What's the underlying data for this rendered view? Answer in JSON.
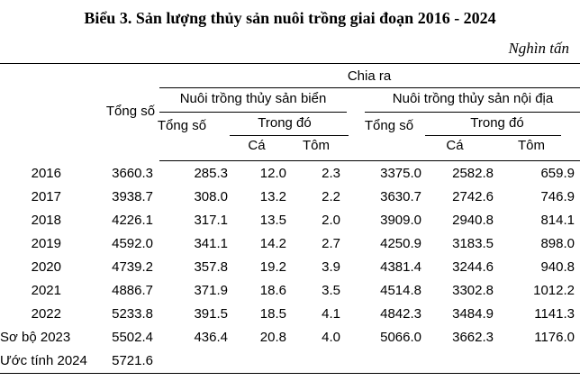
{
  "title": "Biểu 3. Sản lượng thủy sản nuôi trồng giai đoạn 2016 - 2024",
  "unit": "Nghìn tấn",
  "header": {
    "chia_ra": "Chia ra",
    "total": "Tổng số",
    "marine_group": "Nuôi trồng thủy sản biển",
    "inland_group": "Nuôi trồng thủy sản nội địa",
    "marine": {
      "total": "Tổng số",
      "trong_do": "Trong đó",
      "ca": "Cá",
      "tom": "Tôm"
    },
    "inland": {
      "total": "Tổng số",
      "trong_do": "Trong đó",
      "ca": "Cá",
      "tom": "Tôm"
    }
  },
  "table": {
    "rows": [
      {
        "label": "2016",
        "values": [
          "3660.3",
          "285.3",
          "12.0",
          "2.3",
          "3375.0",
          "2582.8",
          "659.9"
        ]
      },
      {
        "label": "2017",
        "values": [
          "3938.7",
          "308.0",
          "13.2",
          "2.2",
          "3630.7",
          "2742.6",
          "746.9"
        ]
      },
      {
        "label": "2018",
        "values": [
          "4226.1",
          "317.1",
          "13.5",
          "2.0",
          "3909.0",
          "2940.8",
          "814.1"
        ]
      },
      {
        "label": "2019",
        "values": [
          "4592.0",
          "341.1",
          "14.2",
          "2.7",
          "4250.9",
          "3183.5",
          "898.0"
        ]
      },
      {
        "label": "2020",
        "values": [
          "4739.2",
          "357.8",
          "19.2",
          "3.9",
          "4381.4",
          "3244.6",
          "940.8"
        ]
      },
      {
        "label": "2021",
        "values": [
          "4886.7",
          "371.9",
          "18.6",
          "3.5",
          "4514.8",
          "3302.8",
          "1012.2"
        ]
      },
      {
        "label": "2022",
        "values": [
          "5233.8",
          "391.5",
          "18.5",
          "4.1",
          "4842.3",
          "3484.9",
          "1141.3"
        ]
      },
      {
        "label": "Sơ bộ 2023",
        "values": [
          "5502.4",
          "436.4",
          "20.8",
          "4.0",
          "5066.0",
          "3662.3",
          "1176.0"
        ]
      },
      {
        "label": "Ước tính 2024",
        "values": [
          "5721.6",
          "",
          "",
          "",
          "",
          "",
          ""
        ]
      }
    ]
  },
  "chart_data": {
    "type": "table",
    "title": "Biểu 3. Sản lượng thủy sản nuôi trồng giai đoạn 2016 - 2024",
    "unit": "Nghìn tấn",
    "column_group_label": "Chia ra",
    "columns": [
      "",
      "Tổng số",
      "Nuôi trồng thủy sản biển - Tổng số",
      "Nuôi trồng thủy sản biển - Trong đó - Cá",
      "Nuôi trồng thủy sản biển - Trong đó - Tôm",
      "Nuôi trồng thủy sản nội địa - Tổng số",
      "Nuôi trồng thủy sản nội địa - Trong đó - Cá",
      "Nuôi trồng thủy sản nội địa - Trong đó - Tôm"
    ],
    "rows": [
      [
        "2016",
        3660.3,
        285.3,
        12.0,
        2.3,
        3375.0,
        2582.8,
        659.9
      ],
      [
        "2017",
        3938.7,
        308.0,
        13.2,
        2.2,
        3630.7,
        2742.6,
        746.9
      ],
      [
        "2018",
        4226.1,
        317.1,
        13.5,
        2.0,
        3909.0,
        2940.8,
        814.1
      ],
      [
        "2019",
        4592.0,
        341.1,
        14.2,
        2.7,
        4250.9,
        3183.5,
        898.0
      ],
      [
        "2020",
        4739.2,
        357.8,
        19.2,
        3.9,
        4381.4,
        3244.6,
        940.8
      ],
      [
        "2021",
        4886.7,
        371.9,
        18.6,
        3.5,
        4514.8,
        3302.8,
        1012.2
      ],
      [
        "2022",
        5233.8,
        391.5,
        18.5,
        4.1,
        4842.3,
        3484.9,
        1141.3
      ],
      [
        "Sơ bộ 2023",
        5502.4,
        436.4,
        20.8,
        4.0,
        5066.0,
        3662.3,
        1176.0
      ],
      [
        "Ước tính 2024",
        5721.6,
        null,
        null,
        null,
        null,
        null,
        null
      ]
    ]
  }
}
